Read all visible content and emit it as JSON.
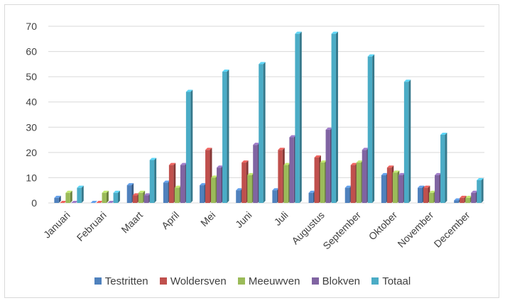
{
  "chart_data": {
    "type": "bar",
    "categories": [
      "Januari",
      "Februari",
      "Maart",
      "April",
      "Mei",
      "Juni",
      "Juli",
      "Augustus",
      "September",
      "Oktober",
      "November",
      "December"
    ],
    "series": [
      {
        "name": "Testritten",
        "color": "#4f81bd",
        "values": [
          2,
          0,
          7,
          8,
          7,
          5,
          5,
          4,
          6,
          11,
          6,
          1
        ]
      },
      {
        "name": "Woldersven",
        "color": "#c0504d",
        "values": [
          0,
          0,
          3,
          15,
          21,
          16,
          21,
          18,
          15,
          14,
          6,
          2
        ]
      },
      {
        "name": "Meeuwven",
        "color": "#9bbb59",
        "values": [
          4,
          4,
          4,
          6,
          10,
          11,
          15,
          16,
          16,
          12,
          4,
          2
        ]
      },
      {
        "name": "Blokven",
        "color": "#8064a2",
        "values": [
          0,
          0,
          3,
          15,
          14,
          23,
          26,
          29,
          21,
          11,
          11,
          4
        ]
      },
      {
        "name": "Totaal",
        "color": "#4bacc6",
        "values": [
          6,
          4,
          17,
          44,
          52,
          55,
          67,
          67,
          58,
          48,
          27,
          9
        ]
      }
    ],
    "yticks": [
      "0",
      "10",
      "20",
      "30",
      "40",
      "50",
      "60",
      "70"
    ],
    "ylim": [
      0,
      70
    ],
    "grid": true,
    "legend_position": "bottom",
    "style": "3d-clustered-column"
  }
}
